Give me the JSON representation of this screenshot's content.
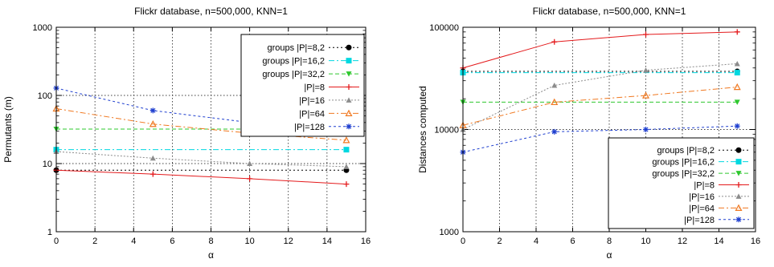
{
  "chart_data": [
    {
      "type": "line",
      "title": "Flickr database, n=500,000, KNN=1",
      "xlabel": "α",
      "ylabel": "Permutants (m)",
      "xlim": [
        0,
        16
      ],
      "ylim": [
        1,
        1000
      ],
      "yscale": "log",
      "xticks": [
        "0",
        "2",
        "4",
        "6",
        "8",
        "10",
        "12",
        "14",
        "16"
      ],
      "yticks": [
        "1",
        "10",
        "100",
        "1000"
      ],
      "grid": true,
      "legend_position": "top-right",
      "series": [
        {
          "name": "groups |P|=8,2",
          "color": "#000000",
          "dash": "2,3",
          "marker": "circle",
          "x": [
            0,
            15
          ],
          "y": [
            8,
            8
          ]
        },
        {
          "name": "groups |P|=16,2",
          "color": "#00d8e0",
          "dash": "7,3,2,3",
          "marker": "square",
          "x": [
            0,
            15
          ],
          "y": [
            16,
            16
          ]
        },
        {
          "name": "groups |P|=32,2",
          "color": "#2ec82e",
          "dash": "5,3",
          "marker": "triangle-down",
          "x": [
            0,
            15
          ],
          "y": [
            32,
            32
          ]
        },
        {
          "name": "|P|=8",
          "color": "#e41a1c",
          "dash": "",
          "marker": "plus",
          "x": [
            0,
            5,
            10,
            15
          ],
          "y": [
            8,
            7,
            6,
            5
          ]
        },
        {
          "name": "|P|=16",
          "color": "#8c8c8c",
          "dash": "2,2",
          "marker": "triangle-up",
          "x": [
            0,
            5,
            10,
            15
          ],
          "y": [
            15,
            12,
            10,
            9
          ]
        },
        {
          "name": "|P|=64",
          "color": "#f07820",
          "dash": "7,3,2,3",
          "marker": "triangle-open",
          "x": [
            0,
            5,
            10,
            15
          ],
          "y": [
            64,
            38,
            28,
            22
          ]
        },
        {
          "name": "|P|=128",
          "color": "#1f3fcf",
          "dash": "3,3",
          "marker": "star",
          "x": [
            0,
            5,
            10,
            15
          ],
          "y": [
            128,
            60,
            40,
            31
          ]
        }
      ]
    },
    {
      "type": "line",
      "title": "Flickr database, n=500,000, KNN=1",
      "xlabel": "α",
      "ylabel": "Distances computed",
      "xlim": [
        0,
        16
      ],
      "ylim": [
        1000,
        100000
      ],
      "yscale": "log",
      "xticks": [
        "0",
        "2",
        "4",
        "6",
        "8",
        "10",
        "12",
        "14",
        "16"
      ],
      "yticks": [
        "1000",
        "10000",
        "100000"
      ],
      "grid": true,
      "legend_position": "bottom-right",
      "series": [
        {
          "name": "groups |P|=8,2",
          "color": "#000000",
          "dash": "2,3",
          "marker": "circle",
          "x": [
            0,
            15
          ],
          "y": [
            37000,
            37000
          ]
        },
        {
          "name": "groups |P|=16,2",
          "color": "#00d8e0",
          "dash": "7,3,2,3",
          "marker": "square",
          "x": [
            0,
            15
          ],
          "y": [
            36000,
            36000
          ]
        },
        {
          "name": "groups |P|=32,2",
          "color": "#2ec82e",
          "dash": "5,3",
          "marker": "triangle-down",
          "x": [
            0,
            15
          ],
          "y": [
            18500,
            18500
          ]
        },
        {
          "name": "|P|=8",
          "color": "#e41a1c",
          "dash": "",
          "marker": "plus",
          "x": [
            0,
            5,
            10,
            15
          ],
          "y": [
            40000,
            72000,
            85000,
            90000
          ]
        },
        {
          "name": "|P|=16",
          "color": "#8c8c8c",
          "dash": "2,2",
          "marker": "triangle-up",
          "x": [
            0,
            5,
            10,
            15
          ],
          "y": [
            10000,
            27000,
            38000,
            44000
          ]
        },
        {
          "name": "|P|=64",
          "color": "#f07820",
          "dash": "7,3,2,3",
          "marker": "triangle-open",
          "x": [
            0,
            5,
            10,
            15
          ],
          "y": [
            11000,
            18500,
            21500,
            26000
          ]
        },
        {
          "name": "|P|=128",
          "color": "#1f3fcf",
          "dash": "3,3",
          "marker": "star",
          "x": [
            0,
            5,
            10,
            15
          ],
          "y": [
            6000,
            9500,
            10000,
            10800
          ]
        }
      ]
    }
  ]
}
